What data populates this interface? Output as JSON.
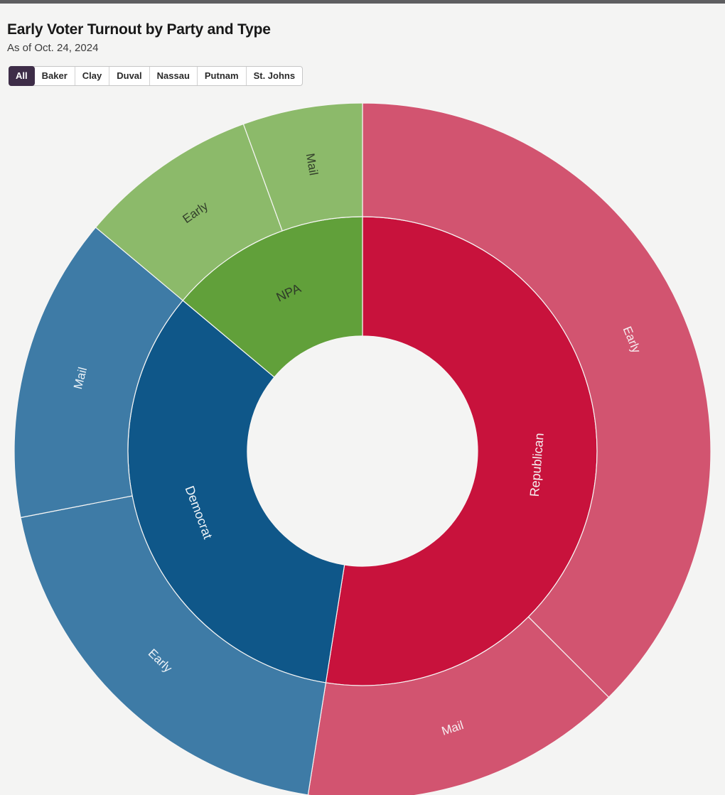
{
  "page": {
    "title": "Early Voter Turnout by Party and Type",
    "subtitle": "As of Oct. 24, 2024"
  },
  "tabs": {
    "selected": "All",
    "items": [
      {
        "label": "All",
        "selected": true
      },
      {
        "label": "Baker",
        "selected": false
      },
      {
        "label": "Clay",
        "selected": false
      },
      {
        "label": "Duval",
        "selected": false
      },
      {
        "label": "Nassau",
        "selected": false
      },
      {
        "label": "Putnam",
        "selected": false
      },
      {
        "label": "St. Johns",
        "selected": false
      }
    ]
  },
  "colors": {
    "top_bar": "#5e5e60",
    "page_background": "#f4f4f3",
    "tab_selected_background": "#3e2d48",
    "republican_inner": "#c8123c",
    "republican_outer": "#d25470",
    "democrat_inner": "#0f5789",
    "democrat_outer": "#3e7ba6",
    "npa_inner": "#61a03a",
    "npa_outer": "#8cba6a"
  },
  "chart_data": {
    "type": "sunburst",
    "title": "Early Voter Turnout by Party and Type",
    "subtitle": "As of Oct. 24, 2024",
    "legend_position": "none",
    "grid": false,
    "note": "Angles measured clockwise from 12 o'clock; share_pct is the angular share of all early votes.",
    "rings": [
      {
        "name": "party",
        "segments": [
          {
            "id": "republican",
            "label": "Republican",
            "share_pct": 52.5,
            "start_deg": 0,
            "end_deg": 189,
            "color": "#c8123c",
            "text_color": "#f5f0f1"
          },
          {
            "id": "democrat",
            "label": "Democrat",
            "share_pct": 33.6,
            "start_deg": 189,
            "end_deg": 310,
            "color": "#0f5789",
            "text_color": "#eef3f7"
          },
          {
            "id": "npa",
            "label": "NPA",
            "share_pct": 13.9,
            "start_deg": 310,
            "end_deg": 360,
            "color": "#61a03a",
            "text_color": "#2e3a28"
          }
        ]
      },
      {
        "name": "vote-type",
        "segments": [
          {
            "id": "republican-early",
            "party": "Republican",
            "label": "Early",
            "share_pct": 37.5,
            "start_deg": 0,
            "end_deg": 135,
            "color": "#d25470",
            "text_color": "#f7eef1"
          },
          {
            "id": "republican-mail",
            "party": "Republican",
            "label": "Mail",
            "share_pct": 15.0,
            "start_deg": 135,
            "end_deg": 189,
            "color": "#d25470",
            "text_color": "#f7eef1"
          },
          {
            "id": "democrat-early",
            "party": "Democrat",
            "label": "Early",
            "share_pct": 19.4,
            "start_deg": 189,
            "end_deg": 259,
            "color": "#3e7ba6",
            "text_color": "#edf3f8"
          },
          {
            "id": "democrat-mail",
            "party": "Democrat",
            "label": "Mail",
            "share_pct": 14.2,
            "start_deg": 259,
            "end_deg": 310,
            "color": "#3e7ba6",
            "text_color": "#edf3f8"
          },
          {
            "id": "npa-early",
            "party": "NPA",
            "label": "Early",
            "share_pct": 8.3,
            "start_deg": 310,
            "end_deg": 340,
            "color": "#8cba6a",
            "text_color": "#33402b"
          },
          {
            "id": "npa-mail",
            "party": "NPA",
            "label": "Mail",
            "share_pct": 5.6,
            "start_deg": 340,
            "end_deg": 360,
            "color": "#8cba6a",
            "text_color": "#33402b"
          }
        ]
      }
    ]
  }
}
